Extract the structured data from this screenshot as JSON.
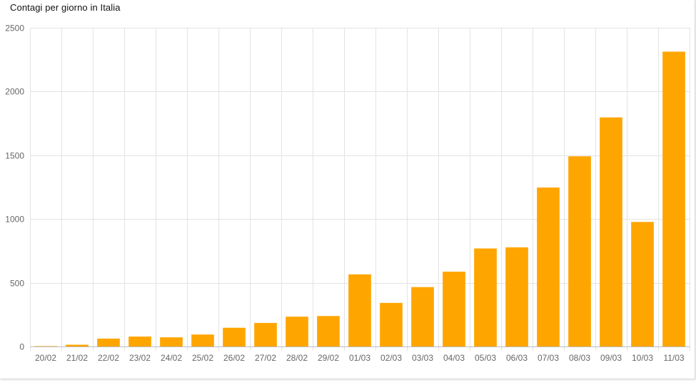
{
  "chart_data": {
    "type": "bar",
    "title": "Contagi per giorno in Italia",
    "xlabel": "",
    "ylabel": "",
    "ylim": [
      0,
      2500
    ],
    "yticks": [
      0,
      500,
      1000,
      1500,
      2000,
      2500
    ],
    "grid": true,
    "legend": "none",
    "bar_color": "#ffa500",
    "categories": [
      "20/02",
      "21/02",
      "22/02",
      "23/02",
      "24/02",
      "25/02",
      "26/02",
      "27/02",
      "28/02",
      "29/02",
      "01/03",
      "02/03",
      "03/03",
      "04/03",
      "05/03",
      "06/03",
      "07/03",
      "08/03",
      "09/03",
      "10/03",
      "11/03"
    ],
    "values": [
      3,
      14,
      62,
      78,
      72,
      94,
      147,
      185,
      234,
      239,
      566,
      342,
      466,
      587,
      769,
      778,
      1247,
      1492,
      1797,
      977,
      2313
    ]
  }
}
